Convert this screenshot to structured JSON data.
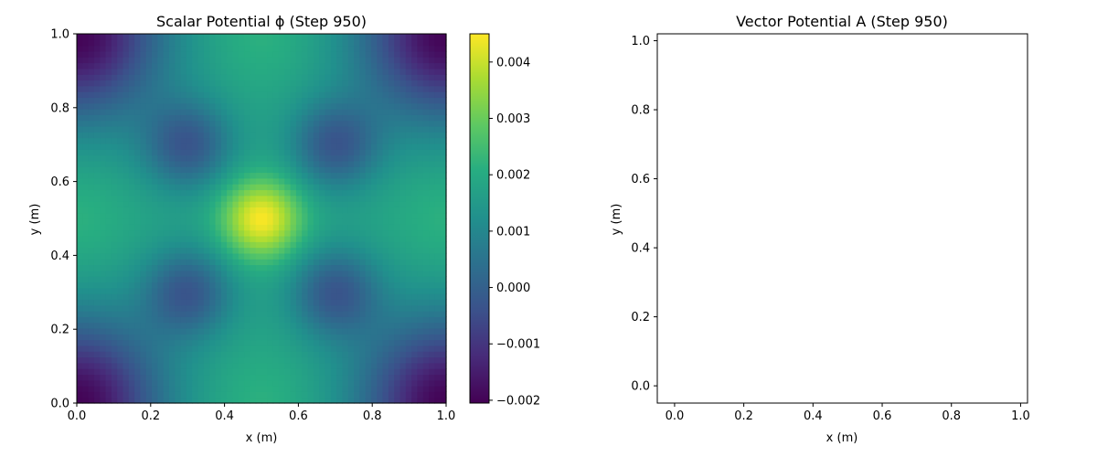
{
  "chart_data": [
    {
      "type": "heatmap",
      "title": "Scalar Potential ϕ (Step 950)",
      "xlabel": "x (m)",
      "ylabel": "y (m)",
      "xlim": [
        0.0,
        1.0
      ],
      "ylim": [
        0.0,
        1.0
      ],
      "xticks": [
        "0.0",
        "0.2",
        "0.4",
        "0.6",
        "0.8",
        "1.0"
      ],
      "yticks": [
        "0.0",
        "0.2",
        "0.4",
        "0.6",
        "0.8",
        "1.0"
      ],
      "colormap": "viridis",
      "colorbar": {
        "range": [
          -0.00205,
          0.0045
        ],
        "ticks": [
          -0.002,
          -0.001,
          0.0,
          0.001,
          0.002,
          0.003,
          0.004
        ],
        "tick_labels": [
          "−0.002",
          "−0.001",
          "0.000",
          "0.001",
          "0.002",
          "0.003",
          "0.004"
        ]
      },
      "grid_shape": [
        64,
        64
      ],
      "field_features": {
        "center_peak": {
          "x": 0.5,
          "y": 0.5,
          "value": 0.0045
        },
        "local_minima": [
          {
            "x": 0.3,
            "y": 0.3,
            "value": -0.0002
          },
          {
            "x": 0.7,
            "y": 0.3,
            "value": -0.0002
          },
          {
            "x": 0.3,
            "y": 0.7,
            "value": -0.0002
          },
          {
            "x": 0.7,
            "y": 0.7,
            "value": -0.0002
          }
        ],
        "corner_minima": [
          {
            "x": 0.0,
            "y": 0.0,
            "value": -0.002
          },
          {
            "x": 1.0,
            "y": 0.0,
            "value": -0.002
          },
          {
            "x": 0.0,
            "y": 1.0,
            "value": -0.002
          },
          {
            "x": 1.0,
            "y": 1.0,
            "value": -0.002
          }
        ],
        "edge_mid_value": 0.0022
      },
      "grid": false
    },
    {
      "type": "line",
      "title": "Vector Potential A (Step 950)",
      "xlabel": "x (m)",
      "ylabel": "y (m)",
      "xlim": [
        -0.05,
        1.02
      ],
      "ylim": [
        -0.05,
        1.02
      ],
      "xticks": [
        "0.0",
        "0.2",
        "0.4",
        "0.6",
        "0.8",
        "1.0"
      ],
      "yticks": [
        "0.0",
        "0.2",
        "0.4",
        "0.6",
        "0.8",
        "1.0"
      ],
      "series": [],
      "grid": false
    }
  ]
}
